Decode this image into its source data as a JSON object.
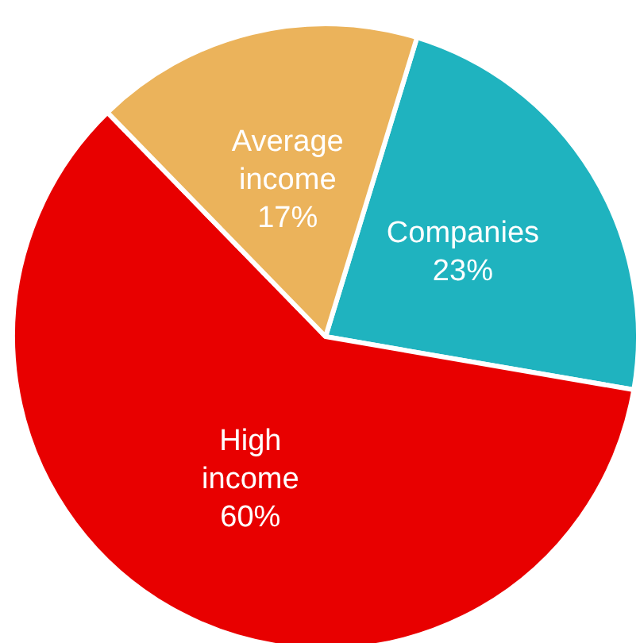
{
  "chart_data": {
    "type": "pie",
    "categories": [
      "Companies",
      "High income",
      "Average income"
    ],
    "values": [
      23,
      60,
      17
    ],
    "value_labels": [
      "23%",
      "60%",
      "17%"
    ],
    "colors": [
      "#1fb3bf",
      "#e80000",
      "#ebb35b"
    ],
    "legend": false
  }
}
